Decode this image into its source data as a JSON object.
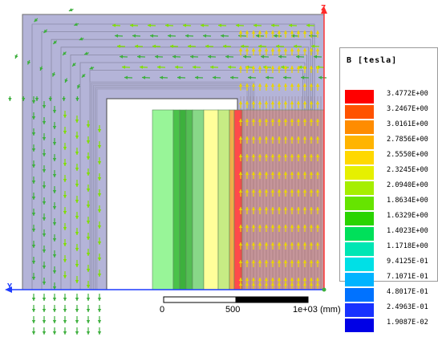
{
  "colors": {
    "yoke_fill": "#b4b4d8",
    "yoke_stroke": "#6c6c6c",
    "arrow_yellow": "#e9d400",
    "arrow_green": "#3caf3c",
    "arrow_lime": "#7fe000",
    "y_axis": "#1e3cff",
    "z_axis": "#ff2a2a"
  },
  "legend": {
    "title": "B [tesla]",
    "entries": [
      {
        "label": "3.4772E+00",
        "color": "#ff0000"
      },
      {
        "label": "3.2467E+00",
        "color": "#ff5200"
      },
      {
        "label": "3.0161E+00",
        "color": "#ff8c00"
      },
      {
        "label": "2.7856E+00",
        "color": "#ffb400"
      },
      {
        "label": "2.5550E+00",
        "color": "#ffd800"
      },
      {
        "label": "2.3245E+00",
        "color": "#e6f000"
      },
      {
        "label": "2.0940E+00",
        "color": "#a6ee00"
      },
      {
        "label": "1.8634E+00",
        "color": "#66e400"
      },
      {
        "label": "1.6329E+00",
        "color": "#2ad400"
      },
      {
        "label": "1.4023E+00",
        "color": "#00e05a"
      },
      {
        "label": "1.1718E+00",
        "color": "#00e6b4"
      },
      {
        "label": "9.4125E-01",
        "color": "#00e0e6"
      },
      {
        "label": "7.1071E-01",
        "color": "#00b4ff"
      },
      {
        "label": "4.8017E-01",
        "color": "#0072ff"
      },
      {
        "label": "2.4963E-01",
        "color": "#1832ff"
      },
      {
        "label": "1.9087E-02",
        "color": "#0000e6"
      }
    ]
  },
  "scale_bar": {
    "labels": [
      "0",
      "500",
      "1e+03 (mm)"
    ]
  },
  "axes": {
    "y_label": "Y",
    "z_label": "Z"
  },
  "windings": [
    {
      "color": "#98f598"
    },
    {
      "color": "#4ac24a"
    },
    {
      "color": "#3db03d"
    },
    {
      "color": "#54bd54"
    },
    {
      "color": "#88d888"
    },
    {
      "color": "#ffff9a"
    },
    {
      "color": "#c7ec84"
    },
    {
      "color": "#f0ae4a"
    },
    {
      "color": "#ff4a4a"
    },
    {
      "color": "#c99090"
    }
  ]
}
